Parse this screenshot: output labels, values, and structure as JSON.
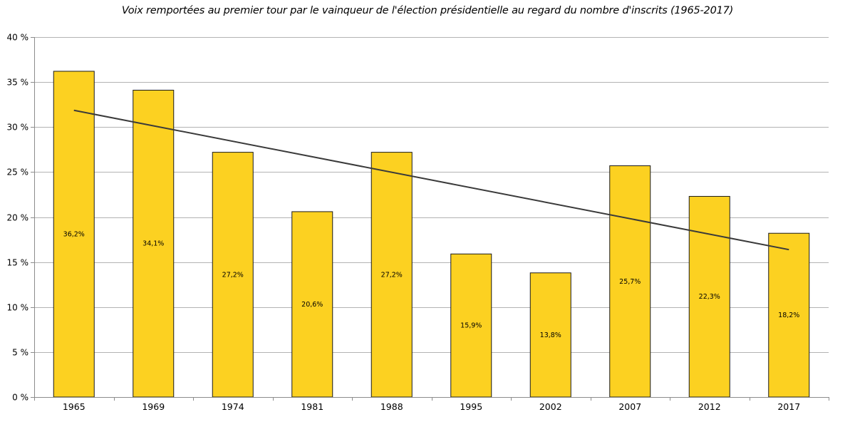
{
  "chart_data": {
    "type": "bar",
    "title": "Voix remportées au premier tour par le vainqueur de l'élection présidentielle au regard du nombre d'inscrits (1965-2017)",
    "xlabel": "",
    "ylabel": "",
    "categories": [
      "1965",
      "1969",
      "1974",
      "1981",
      "1988",
      "1995",
      "2002",
      "2007",
      "2012",
      "2017"
    ],
    "values": [
      36.2,
      34.1,
      27.2,
      20.6,
      27.2,
      15.9,
      13.8,
      25.7,
      22.3,
      18.2
    ],
    "data_labels": [
      "36,2%",
      "34,1%",
      "27,2%",
      "20,6%",
      "27,2%",
      "15,9%",
      "13,8%",
      "25,7%",
      "22,3%",
      "18,2%"
    ],
    "ylim": [
      0,
      40
    ],
    "yticks": [
      0,
      5,
      10,
      15,
      20,
      25,
      30,
      35,
      40
    ],
    "ytick_labels": [
      "0 %",
      "5 %",
      "10 %",
      "15 %",
      "20 %",
      "25 %",
      "30 %",
      "35 %",
      "40 %"
    ],
    "trendline": {
      "type": "linear"
    },
    "grid": true,
    "legend": "none",
    "colors": {
      "bar_fill": "#fcd121",
      "bar_stroke": "#1a1a1a",
      "trendline": "#3a3a3a",
      "grid": "#b3b3b3",
      "axis": "#8c8c8c"
    }
  }
}
